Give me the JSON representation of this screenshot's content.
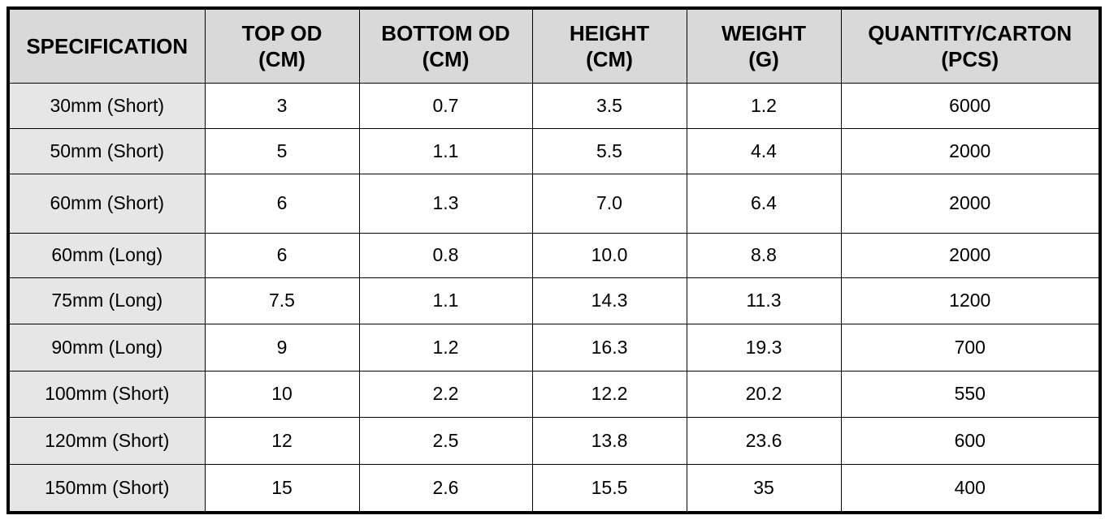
{
  "table": {
    "header": [
      [
        "SPECIFICATION"
      ],
      [
        "TOP OD",
        "(CM)"
      ],
      [
        "BOTTOM OD",
        "(CM)"
      ],
      [
        "HEIGHT",
        "(CM)"
      ],
      [
        "WEIGHT",
        "(G)"
      ],
      [
        "QUANTITY/CARTON",
        "(PCS)"
      ]
    ],
    "rows": [
      [
        "30mm (Short)",
        "3",
        "0.7",
        "3.5",
        "1.2",
        "6000"
      ],
      [
        "50mm (Short)",
        "5",
        "1.1",
        "5.5",
        "4.4",
        "2000"
      ],
      [
        "60mm (Short)",
        "6",
        "1.3",
        "7.0",
        "6.4",
        "2000"
      ],
      [
        "60mm (Long)",
        "6",
        "0.8",
        "10.0",
        "8.8",
        "2000"
      ],
      [
        "75mm (Long)",
        "7.5",
        "1.1",
        "14.3",
        "11.3",
        "1200"
      ],
      [
        "90mm (Long)",
        "9",
        "1.2",
        "16.3",
        "19.3",
        "700"
      ],
      [
        "100mm (Short)",
        "10",
        "2.2",
        "12.2",
        "20.2",
        "550"
      ],
      [
        "120mm (Short)",
        "12",
        "2.5",
        "13.8",
        "23.6",
        "600"
      ],
      [
        "150mm (Short)",
        "15",
        "2.6",
        "15.5",
        "35",
        "400"
      ]
    ]
  }
}
